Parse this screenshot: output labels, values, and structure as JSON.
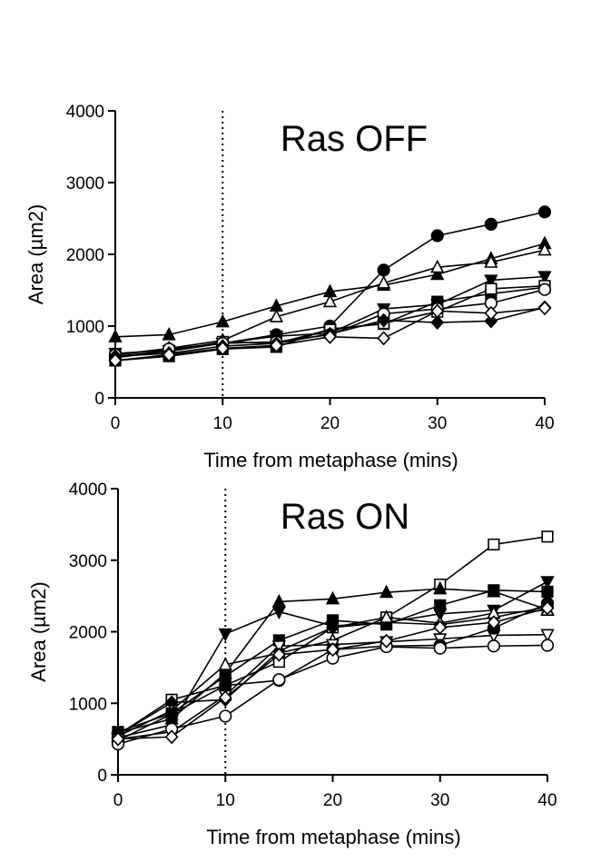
{
  "chart_data": [
    {
      "type": "line",
      "title": "Ras OFF",
      "xlabel": "Time from metaphase (mins)",
      "ylabel": "Area (µm2)",
      "xlim": [
        0,
        40
      ],
      "ylim": [
        0,
        4000
      ],
      "xticks": [
        0,
        10,
        20,
        30,
        40
      ],
      "yticks": [
        0,
        1000,
        2000,
        3000,
        4000
      ],
      "vline_x": 10,
      "x": [
        0,
        5,
        10,
        15,
        20,
        25,
        30,
        35,
        40
      ],
      "series": [
        {
          "marker": "circle",
          "filled": true,
          "values": [
            560,
            650,
            760,
            880,
            1000,
            1780,
            2260,
            2420,
            2590
          ]
        },
        {
          "marker": "triangle-up",
          "filled": true,
          "values": [
            850,
            880,
            1060,
            1280,
            1480,
            1570,
            1720,
            1940,
            2150
          ]
        },
        {
          "marker": "triangle-up",
          "filled": false,
          "values": [
            600,
            690,
            800,
            1130,
            1340,
            1600,
            1820,
            1890,
            2060
          ]
        },
        {
          "marker": "triangle-down",
          "filled": true,
          "values": [
            620,
            660,
            760,
            860,
            900,
            1240,
            1300,
            1640,
            1690
          ]
        },
        {
          "marker": "square",
          "filled": true,
          "values": [
            520,
            580,
            680,
            710,
            960,
            1030,
            1340,
            1450,
            1540
          ]
        },
        {
          "marker": "square",
          "filled": false,
          "values": [
            580,
            650,
            780,
            760,
            950,
            1040,
            1200,
            1520,
            1560
          ]
        },
        {
          "marker": "circle",
          "filled": false,
          "values": [
            600,
            680,
            760,
            780,
            880,
            1170,
            1240,
            1320,
            1510
          ]
        },
        {
          "marker": "diamond",
          "filled": true,
          "values": [
            580,
            620,
            720,
            760,
            890,
            1080,
            1050,
            1070,
            1260
          ]
        },
        {
          "marker": "diamond",
          "filled": false,
          "values": [
            520,
            600,
            690,
            730,
            850,
            830,
            1210,
            1180,
            1250
          ]
        }
      ]
    },
    {
      "type": "line",
      "title": "Ras ON",
      "xlabel": "Time from metaphase (mins)",
      "ylabel": "Area (µm2)",
      "xlim": [
        0,
        40
      ],
      "ylim": [
        0,
        4000
      ],
      "xticks": [
        0,
        10,
        20,
        30,
        40
      ],
      "yticks": [
        0,
        1000,
        2000,
        3000,
        4000
      ],
      "vline_x": 10,
      "x": [
        0,
        5,
        10,
        15,
        20,
        25,
        30,
        35,
        40
      ],
      "series": [
        {
          "marker": "square",
          "filled": false,
          "values": [
            560,
            1050,
            1250,
            1580,
            2060,
            2200,
            2660,
            3220,
            3330
          ]
        },
        {
          "marker": "triangle-up",
          "filled": true,
          "values": [
            590,
            780,
            1420,
            2420,
            2460,
            2550,
            2600,
            2560,
            2310
          ]
        },
        {
          "marker": "triangle-down",
          "filled": true,
          "values": [
            520,
            700,
            1970,
            2280,
            2080,
            2130,
            2250,
            2300,
            2700
          ]
        },
        {
          "marker": "square",
          "filled": true,
          "values": [
            600,
            860,
            1380,
            1880,
            2160,
            2100,
            2370,
            2580,
            2560
          ]
        },
        {
          "marker": "diamond",
          "filled": true,
          "values": [
            560,
            1010,
            1050,
            1730,
            2060,
            2130,
            2100,
            2200,
            2350
          ]
        },
        {
          "marker": "triangle-up",
          "filled": false,
          "values": [
            540,
            900,
            1540,
            1700,
            1880,
            2200,
            2120,
            2260,
            2300
          ]
        },
        {
          "marker": "triangle-down",
          "filled": false,
          "values": [
            500,
            600,
            1110,
            1800,
            1820,
            1860,
            1900,
            1950,
            1960
          ]
        },
        {
          "marker": "circle",
          "filled": true,
          "values": [
            480,
            850,
            1250,
            1320,
            1750,
            1800,
            1810,
            2050,
            2400
          ]
        },
        {
          "marker": "circle",
          "filled": false,
          "values": [
            430,
            640,
            820,
            1330,
            1630,
            1790,
            1770,
            1800,
            1810
          ]
        },
        {
          "marker": "diamond",
          "filled": false,
          "values": [
            500,
            530,
            1080,
            1680,
            1750,
            1870,
            2060,
            2130,
            2330
          ]
        }
      ]
    }
  ]
}
